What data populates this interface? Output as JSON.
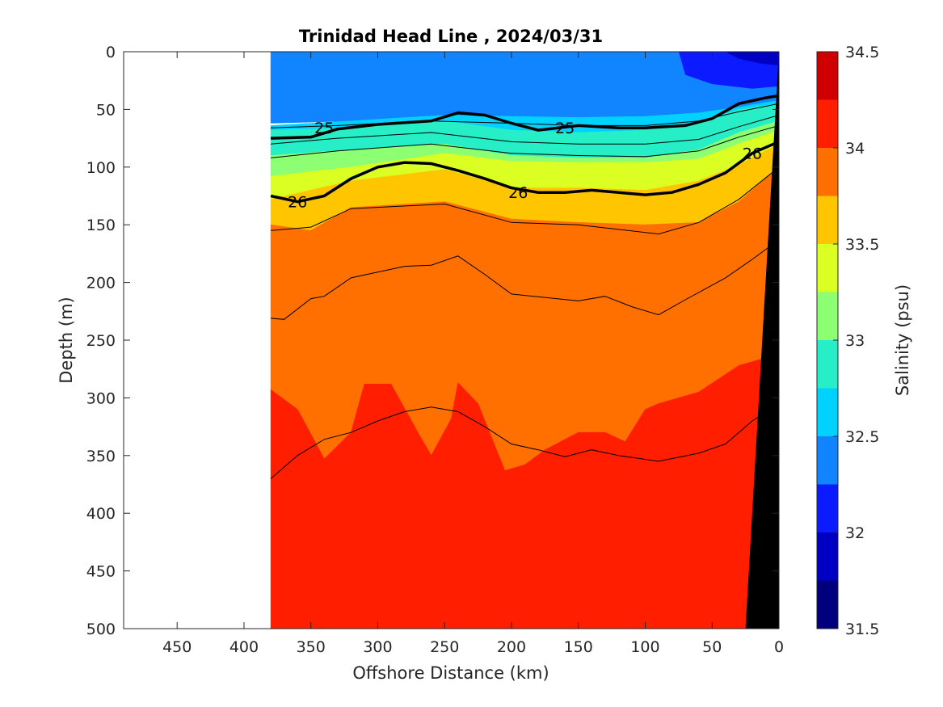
{
  "chart_data": {
    "type": "heatmap",
    "title": "Trinidad Head Line , 2024/03/31",
    "xlabel": "Offshore Distance (km)",
    "ylabel": "Depth (m)",
    "colorbar_label": "Salinity (psu)",
    "xlim": [
      490,
      0
    ],
    "ylim": [
      0,
      500
    ],
    "x_ticks": [
      450,
      400,
      350,
      300,
      250,
      200,
      150,
      100,
      50,
      0
    ],
    "y_ticks": [
      0,
      50,
      100,
      150,
      200,
      250,
      300,
      350,
      400,
      450,
      500
    ],
    "colorbar_range": [
      31.5,
      34.5
    ],
    "colorbar_ticks": [
      31.5,
      32,
      32.5,
      33,
      33.5,
      34,
      34.5
    ],
    "colorbar_bins": [
      {
        "min": 31.5,
        "max": 31.75,
        "color": "#00007f"
      },
      {
        "min": 31.75,
        "max": 32.0,
        "color": "#0000c4"
      },
      {
        "min": 32.0,
        "max": 32.25,
        "color": "#0b1aff"
      },
      {
        "min": 32.25,
        "max": 32.5,
        "color": "#1185ff"
      },
      {
        "min": 32.5,
        "max": 32.75,
        "color": "#00d2ff"
      },
      {
        "min": 32.75,
        "max": 33.0,
        "color": "#26eec6"
      },
      {
        "min": 33.0,
        "max": 33.25,
        "color": "#8cff73"
      },
      {
        "min": 33.25,
        "max": 33.5,
        "color": "#dbff22"
      },
      {
        "min": 33.5,
        "max": 33.75,
        "color": "#ffc600"
      },
      {
        "min": 33.75,
        "max": 34.0,
        "color": "#ff7000"
      },
      {
        "min": 34.0,
        "max": 34.25,
        "color": "#ff1e00"
      },
      {
        "min": 34.25,
        "max": 34.5,
        "color": "#d10000"
      }
    ],
    "data_extent_km": 380,
    "salinity_layers": [
      {
        "salinity_bin": "32.25-32.5",
        "color": "#1185ff",
        "top": [
          [
            380,
            0
          ],
          [
            0,
            0
          ]
        ],
        "bottom": [
          [
            380,
            62
          ],
          [
            320,
            60
          ],
          [
            250,
            55
          ],
          [
            200,
            56
          ],
          [
            150,
            57
          ],
          [
            100,
            56
          ],
          [
            60,
            53
          ],
          [
            30,
            48
          ],
          [
            0,
            42
          ]
        ]
      },
      {
        "salinity_bin": "32.5-32.75",
        "color": "#00d2ff",
        "top": [
          [
            380,
            64
          ],
          [
            320,
            60
          ],
          [
            250,
            55
          ],
          [
            200,
            56
          ],
          [
            150,
            57
          ],
          [
            100,
            56
          ],
          [
            60,
            53
          ],
          [
            30,
            48
          ],
          [
            0,
            42
          ]
        ],
        "bottom": [
          [
            380,
            68
          ],
          [
            320,
            66
          ],
          [
            250,
            60
          ],
          [
            200,
            68
          ],
          [
            150,
            70
          ],
          [
            100,
            68
          ],
          [
            60,
            62
          ],
          [
            30,
            50
          ],
          [
            0,
            45
          ]
        ]
      },
      {
        "salinity_bin": "32.75-33.0",
        "color": "#26eec6",
        "top": [
          [
            380,
            68
          ],
          [
            320,
            66
          ],
          [
            250,
            60
          ],
          [
            200,
            68
          ],
          [
            150,
            70
          ],
          [
            100,
            68
          ],
          [
            60,
            62
          ],
          [
            30,
            50
          ],
          [
            0,
            45
          ]
        ],
        "bottom": [
          [
            380,
            90
          ],
          [
            320,
            85
          ],
          [
            250,
            80
          ],
          [
            200,
            90
          ],
          [
            150,
            92
          ],
          [
            100,
            92
          ],
          [
            60,
            85
          ],
          [
            30,
            70
          ],
          [
            0,
            60
          ]
        ]
      },
      {
        "salinity_bin": "33.0-33.25",
        "color": "#8cff73",
        "top": [
          [
            380,
            90
          ],
          [
            320,
            85
          ],
          [
            250,
            80
          ],
          [
            200,
            90
          ],
          [
            150,
            92
          ],
          [
            100,
            92
          ],
          [
            60,
            85
          ],
          [
            30,
            70
          ],
          [
            0,
            60
          ]
        ],
        "bottom": [
          [
            380,
            108
          ],
          [
            320,
            100
          ],
          [
            250,
            88
          ],
          [
            200,
            95
          ],
          [
            150,
            96
          ],
          [
            100,
            96
          ],
          [
            60,
            93
          ],
          [
            30,
            80
          ],
          [
            0,
            68
          ]
        ]
      },
      {
        "salinity_bin": "33.25-33.5",
        "color": "#dbff22",
        "top": [
          [
            380,
            108
          ],
          [
            320,
            100
          ],
          [
            250,
            88
          ],
          [
            200,
            95
          ],
          [
            150,
            96
          ],
          [
            100,
            96
          ],
          [
            60,
            93
          ],
          [
            30,
            80
          ],
          [
            0,
            68
          ]
        ],
        "bottom": [
          [
            380,
            128
          ],
          [
            320,
            112
          ],
          [
            250,
            102
          ],
          [
            200,
            118
          ],
          [
            150,
            118
          ],
          [
            100,
            120
          ],
          [
            60,
            112
          ],
          [
            30,
            98
          ],
          [
            0,
            80
          ]
        ]
      },
      {
        "salinity_bin": "33.5-33.75",
        "color": "#ffc600",
        "top": [
          [
            380,
            128
          ],
          [
            320,
            112
          ],
          [
            250,
            102
          ],
          [
            200,
            118
          ],
          [
            150,
            118
          ],
          [
            100,
            120
          ],
          [
            60,
            112
          ],
          [
            30,
            98
          ],
          [
            0,
            80
          ]
        ],
        "bottom": [
          [
            380,
            150
          ],
          [
            350,
            155
          ],
          [
            320,
            135
          ],
          [
            250,
            130
          ],
          [
            200,
            145
          ],
          [
            150,
            148
          ],
          [
            100,
            150
          ],
          [
            60,
            148
          ],
          [
            30,
            130
          ],
          [
            0,
            100
          ]
        ]
      },
      {
        "salinity_bin": "33.75-34.0",
        "color": "#ff7000",
        "top": [
          [
            380,
            150
          ],
          [
            350,
            155
          ],
          [
            320,
            135
          ],
          [
            250,
            130
          ],
          [
            200,
            145
          ],
          [
            150,
            148
          ],
          [
            100,
            150
          ],
          [
            60,
            148
          ],
          [
            30,
            130
          ],
          [
            0,
            100
          ]
        ],
        "bottom": [
          [
            380,
            293
          ],
          [
            360,
            310
          ],
          [
            340,
            353
          ],
          [
            320,
            330
          ],
          [
            310,
            288
          ],
          [
            290,
            288
          ],
          [
            270,
            330
          ],
          [
            260,
            350
          ],
          [
            245,
            318
          ],
          [
            240,
            287
          ],
          [
            225,
            305
          ],
          [
            205,
            363
          ],
          [
            190,
            358
          ],
          [
            175,
            345
          ],
          [
            150,
            330
          ],
          [
            130,
            330
          ],
          [
            115,
            338
          ],
          [
            100,
            310
          ],
          [
            90,
            305
          ],
          [
            60,
            295
          ],
          [
            30,
            272
          ],
          [
            0,
            262
          ]
        ]
      },
      {
        "salinity_bin": "34.0-34.25",
        "color": "#ff1e00",
        "top": [
          [
            380,
            293
          ],
          [
            360,
            310
          ],
          [
            340,
            353
          ],
          [
            320,
            330
          ],
          [
            310,
            288
          ],
          [
            290,
            288
          ],
          [
            270,
            330
          ],
          [
            260,
            350
          ],
          [
            245,
            318
          ],
          [
            240,
            287
          ],
          [
            225,
            305
          ],
          [
            205,
            363
          ],
          [
            190,
            358
          ],
          [
            175,
            345
          ],
          [
            150,
            330
          ],
          [
            130,
            330
          ],
          [
            115,
            338
          ],
          [
            100,
            310
          ],
          [
            90,
            305
          ],
          [
            60,
            295
          ],
          [
            30,
            272
          ],
          [
            0,
            262
          ]
        ],
        "bottom": [
          [
            380,
            500
          ],
          [
            0,
            500
          ]
        ]
      }
    ],
    "surface_features": [
      {
        "salinity_bin": "32.0-32.25",
        "color": "#0b1aff",
        "points": [
          [
            75,
            0
          ],
          [
            0,
            0
          ],
          [
            0,
            30
          ],
          [
            20,
            32
          ],
          [
            50,
            28
          ],
          [
            70,
            20
          ]
        ]
      },
      {
        "salinity_bin": "31.75-32.0",
        "color": "#0000c4",
        "points": [
          [
            40,
            0
          ],
          [
            0,
            0
          ],
          [
            0,
            12
          ],
          [
            15,
            10
          ],
          [
            30,
            6
          ]
        ]
      }
    ],
    "contours_thin": [
      [
        [
          380,
          66
        ],
        [
          330,
          64
        ],
        [
          260,
          60
        ],
        [
          200,
          62
        ],
        [
          150,
          64
        ],
        [
          100,
          64
        ],
        [
          60,
          60
        ],
        [
          30,
          52
        ],
        [
          0,
          45
        ]
      ],
      [
        [
          380,
          80
        ],
        [
          330,
          75
        ],
        [
          260,
          70
        ],
        [
          200,
          78
        ],
        [
          150,
          80
        ],
        [
          100,
          80
        ],
        [
          60,
          76
        ],
        [
          30,
          65
        ],
        [
          0,
          55
        ]
      ],
      [
        [
          380,
          92
        ],
        [
          330,
          86
        ],
        [
          260,
          80
        ],
        [
          200,
          88
        ],
        [
          150,
          90
        ],
        [
          100,
          91
        ],
        [
          60,
          86
        ],
        [
          30,
          74
        ],
        [
          0,
          64
        ]
      ],
      [
        [
          380,
          155
        ],
        [
          350,
          152
        ],
        [
          320,
          136
        ],
        [
          250,
          132
        ],
        [
          200,
          148
        ],
        [
          150,
          150
        ],
        [
          90,
          158
        ],
        [
          60,
          148
        ],
        [
          30,
          128
        ],
        [
          0,
          100
        ]
      ],
      [
        [
          380,
          231
        ],
        [
          370,
          232
        ],
        [
          350,
          214
        ],
        [
          340,
          212
        ],
        [
          320,
          196
        ],
        [
          300,
          191
        ],
        [
          280,
          186
        ],
        [
          260,
          185
        ],
        [
          240,
          177
        ],
        [
          220,
          193
        ],
        [
          200,
          210
        ],
        [
          150,
          216
        ],
        [
          130,
          212
        ],
        [
          110,
          221
        ],
        [
          90,
          228
        ],
        [
          70,
          215
        ],
        [
          40,
          196
        ],
        [
          20,
          180
        ],
        [
          0,
          163
        ]
      ],
      [
        [
          380,
          370
        ],
        [
          360,
          350
        ],
        [
          340,
          336
        ],
        [
          320,
          330
        ],
        [
          300,
          320
        ],
        [
          280,
          312
        ],
        [
          260,
          308
        ],
        [
          240,
          312
        ],
        [
          220,
          325
        ],
        [
          200,
          340
        ],
        [
          180,
          345
        ],
        [
          160,
          351
        ],
        [
          140,
          345
        ],
        [
          120,
          350
        ],
        [
          90,
          355
        ],
        [
          60,
          348
        ],
        [
          40,
          340
        ],
        [
          20,
          320
        ],
        [
          0,
          305
        ]
      ]
    ],
    "contours_bold": [
      {
        "label": "25",
        "points": [
          [
            380,
            75
          ],
          [
            350,
            74
          ],
          [
            330,
            67
          ],
          [
            300,
            63
          ],
          [
            260,
            60
          ],
          [
            240,
            53
          ],
          [
            220,
            55
          ],
          [
            200,
            62
          ],
          [
            180,
            68
          ],
          [
            150,
            64
          ],
          [
            120,
            66
          ],
          [
            100,
            66
          ],
          [
            70,
            64
          ],
          [
            50,
            58
          ],
          [
            30,
            45
          ],
          [
            10,
            40
          ],
          [
            0,
            38
          ]
        ],
        "label_at": [
          [
            340,
            66
          ],
          [
            160,
            66
          ]
        ]
      },
      {
        "label": "26",
        "points": [
          [
            380,
            125
          ],
          [
            360,
            130
          ],
          [
            340,
            125
          ],
          [
            320,
            110
          ],
          [
            300,
            100
          ],
          [
            280,
            96
          ],
          [
            260,
            97
          ],
          [
            240,
            103
          ],
          [
            220,
            110
          ],
          [
            200,
            118
          ],
          [
            180,
            122
          ],
          [
            160,
            122
          ],
          [
            140,
            120
          ],
          [
            120,
            122
          ],
          [
            100,
            124
          ],
          [
            80,
            122
          ],
          [
            60,
            115
          ],
          [
            40,
            105
          ],
          [
            20,
            88
          ],
          [
            0,
            78
          ]
        ],
        "label_at": [
          [
            360,
            130
          ],
          [
            195,
            122
          ],
          [
            20,
            88
          ]
        ]
      }
    ],
    "bathymetry_fill": {
      "color": "#000000",
      "points": [
        [
          0,
          0
        ],
        [
          0,
          500
        ],
        [
          25,
          500
        ]
      ]
    }
  }
}
